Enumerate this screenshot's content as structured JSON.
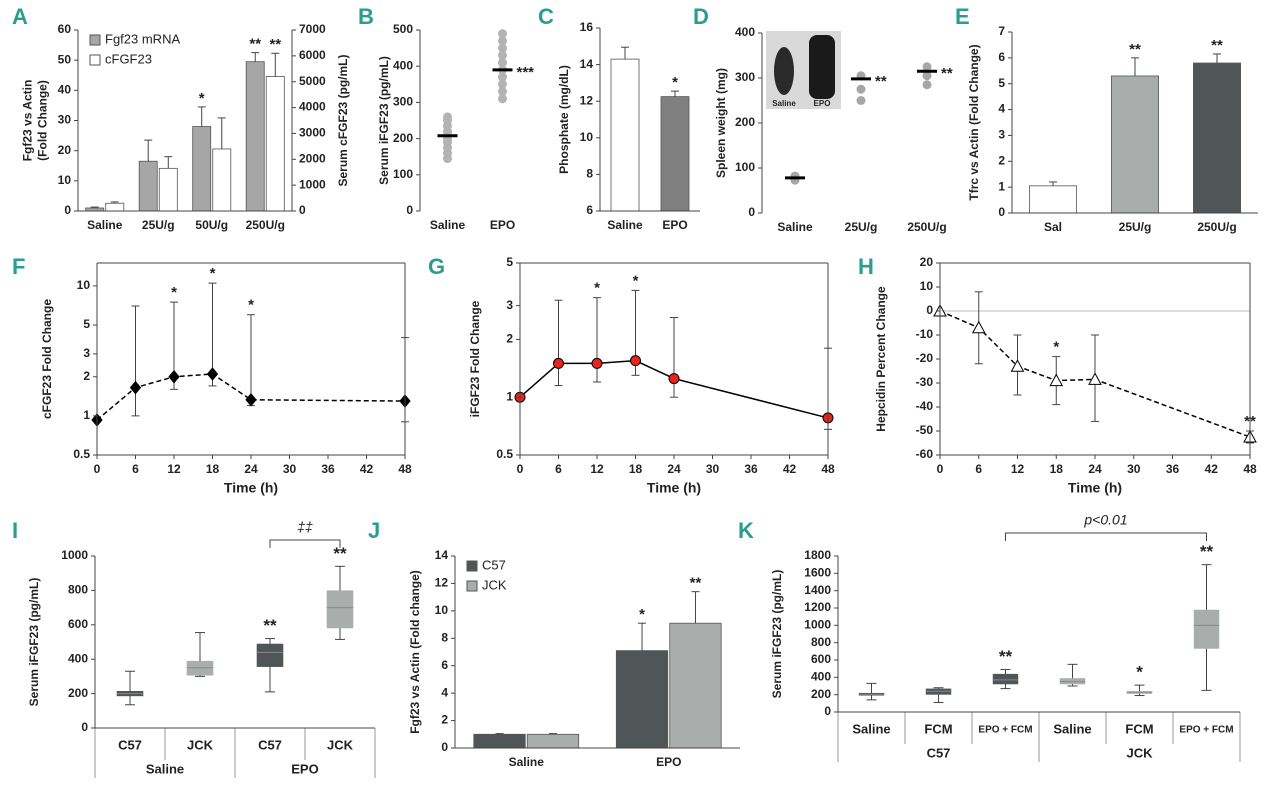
{
  "chart_data": [
    {
      "type": "bar",
      "panel": "A",
      "ylabel": [
        "Fgf23 vs Actin",
        "(Fold Change)"
      ],
      "y2label": "Serum cFGF23 (pg/mL)",
      "categories": [
        "Saline",
        "25U/g",
        "50U/g",
        "250U/g"
      ],
      "series": [
        {
          "name": "Fgf23 mRNA",
          "color": "#a6a6a6",
          "values": [
            1,
            16.5,
            28,
            49.5
          ],
          "errors": [
            0.3,
            7,
            6.5,
            3
          ],
          "labels": [
            null,
            null,
            "*",
            "**"
          ]
        },
        {
          "name": "cFGF23",
          "color": "#ffffff",
          "axis": "y2",
          "values": [
            300,
            1650,
            2400,
            5200
          ],
          "errors": [
            50,
            450,
            1200,
            900
          ],
          "labels": [
            null,
            null,
            null,
            "**"
          ]
        }
      ],
      "ylim": [
        0,
        60
      ],
      "yticks": [
        0,
        10,
        20,
        30,
        40,
        50,
        60
      ],
      "y2lim": [
        0,
        7000
      ],
      "y2ticks": [
        0,
        1000,
        2000,
        3000,
        4000,
        5000,
        6000,
        7000
      ],
      "legend": "upper left"
    },
    {
      "type": "strip",
      "panel": "B",
      "ylabel": "Serum iFGF23 (pg/mL)",
      "categories": [
        "Saline",
        "EPO"
      ],
      "points": [
        [
          145,
          160,
          175,
          190,
          200,
          210,
          220,
          235,
          250,
          260
        ],
        [
          310,
          330,
          350,
          370,
          390,
          410,
          430,
          450,
          470,
          490
        ]
      ],
      "means": [
        208,
        390
      ],
      "labels": [
        null,
        "***"
      ],
      "color": "#b3b3b3",
      "ylim": [
        0,
        500
      ],
      "yticks": [
        0,
        100,
        200,
        300,
        400,
        500
      ]
    },
    {
      "type": "bar",
      "panel": "C",
      "ylabel": "Phosphate (mg/dL)",
      "categories": [
        "Saline",
        "EPO"
      ],
      "values": [
        14.3,
        12.25
      ],
      "errors": [
        0.65,
        0.3
      ],
      "labels": [
        null,
        "*"
      ],
      "colors": [
        "#ffffff",
        "#808080"
      ],
      "ylim": [
        6,
        16
      ],
      "yticks": [
        6,
        8,
        10,
        12,
        14,
        16
      ]
    },
    {
      "type": "strip",
      "panel": "D",
      "ylabel": "Spleen weight (mg)",
      "categories": [
        "Saline",
        "25U/g",
        "250U/g"
      ],
      "points": [
        [
          73,
          78,
          82
        ],
        [
          250,
          275,
          305
        ],
        [
          285,
          305,
          325
        ]
      ],
      "means": [
        78,
        298,
        315
      ],
      "labels": [
        null,
        "**",
        "**"
      ],
      "color": "#a6a6a6",
      "ylim": [
        0,
        400
      ],
      "yticks": [
        0,
        100,
        200,
        300,
        400
      ],
      "inset_labels": [
        "Saline",
        "EPO"
      ]
    },
    {
      "type": "bar",
      "panel": "E",
      "ylabel": "Tfrc vs Actin (Fold Change)",
      "categories": [
        "Sal",
        "25U/g",
        "250U/g"
      ],
      "values": [
        1.05,
        5.3,
        5.8
      ],
      "errors": [
        0.15,
        0.7,
        0.35
      ],
      "labels": [
        null,
        "**",
        "**"
      ],
      "colors": [
        "#ffffff",
        "#a9aeac",
        "#505558"
      ],
      "ylim": [
        0,
        7
      ],
      "yticks": [
        0,
        1,
        2,
        3,
        4,
        5,
        6,
        7
      ]
    },
    {
      "type": "line",
      "panel": "F",
      "ylabel": "cFGF23 Fold Change",
      "xlabel": "Time (h)",
      "log": true,
      "x": [
        0,
        6,
        12,
        18,
        24,
        48
      ],
      "values": [
        0.93,
        1.65,
        2.0,
        2.1,
        1.33,
        1.3
      ],
      "upper": [
        null,
        7,
        7.5,
        10.5,
        6,
        4
      ],
      "lower": [
        null,
        1.0,
        1.6,
        1.7,
        1.2,
        0.9
      ],
      "labels": [
        null,
        null,
        "*",
        "*",
        "*",
        null
      ],
      "color": "#000000",
      "marker": "diamond",
      "marker_fill": "#000000",
      "dashed": true,
      "xlim": [
        0,
        48
      ],
      "xticks": [
        0,
        6,
        12,
        18,
        24,
        30,
        36,
        42,
        48
      ],
      "ylim": [
        0.5,
        15
      ],
      "yticks": [
        0.5,
        1,
        2,
        3,
        5,
        10
      ]
    },
    {
      "type": "line",
      "panel": "G",
      "ylabel": "iFGF23 Fold Change",
      "xlabel": "Time (h)",
      "log": true,
      "x": [
        0,
        6,
        12,
        18,
        24,
        48
      ],
      "values": [
        1.0,
        1.5,
        1.5,
        1.55,
        1.25,
        0.78
      ],
      "upper": [
        null,
        3.2,
        3.3,
        3.6,
        2.6,
        1.8
      ],
      "lower": [
        null,
        1.15,
        1.2,
        1.3,
        1.0,
        0.68
      ],
      "labels": [
        null,
        null,
        "*",
        "*",
        null,
        null
      ],
      "color": "#000000",
      "marker": "circle",
      "marker_fill": "#e8241c",
      "dashed": false,
      "xlim": [
        0,
        48
      ],
      "xticks": [
        0,
        6,
        12,
        18,
        24,
        30,
        36,
        42,
        48
      ],
      "ylim": [
        0.5,
        5
      ],
      "yticks": [
        0.5,
        1,
        2,
        3,
        5
      ]
    },
    {
      "type": "line",
      "panel": "H",
      "ylabel": "Hepcidin Percent Change",
      "xlabel": "Time (h)",
      "log": false,
      "x": [
        0,
        6,
        12,
        18,
        24,
        48
      ],
      "values": [
        0,
        -7,
        -23,
        -29,
        -28.5,
        -52.5
      ],
      "upper": [
        null,
        8,
        -10,
        -19,
        -10,
        -50
      ],
      "lower": [
        null,
        -22,
        -35,
        -39,
        -46,
        -55
      ],
      "labels": [
        null,
        null,
        null,
        "*",
        null,
        "**"
      ],
      "color": "#000000",
      "marker": "triangle",
      "marker_fill": "#ffffff",
      "dashed": true,
      "reference_line": 0,
      "xlim": [
        0,
        48
      ],
      "xticks": [
        0,
        6,
        12,
        18,
        24,
        30,
        36,
        42,
        48
      ],
      "ylim": [
        -60,
        20
      ],
      "yticks": [
        -60,
        -50,
        -40,
        -30,
        -20,
        -10,
        0,
        10,
        20
      ]
    },
    {
      "type": "box",
      "panel": "I",
      "ylabel": "Serum iFGF23 (pg/mL)",
      "categories": [
        "C57",
        "JCK",
        "C57",
        "JCK"
      ],
      "groups": [
        "Saline",
        "EPO"
      ],
      "boxes": [
        [
          135,
          185,
          200,
          215,
          330
        ],
        [
          300,
          305,
          350,
          390,
          555
        ],
        [
          210,
          355,
          440,
          490,
          520
        ],
        [
          515,
          580,
          700,
          800,
          940
        ]
      ],
      "labels": [
        null,
        null,
        "**",
        "**"
      ],
      "colors": [
        "#505558",
        "#a9aeac",
        "#505558",
        "#a9aeac"
      ],
      "bracket_label": "‡‡",
      "ylim": [
        0,
        1000
      ],
      "yticks": [
        0,
        200,
        400,
        600,
        800,
        1000
      ]
    },
    {
      "type": "bar",
      "panel": "J",
      "ylabel": "Fgf23 vs Actin (Fold change)",
      "categories": [
        "Saline",
        "EPO"
      ],
      "series": [
        {
          "name": "C57",
          "color": "#505558",
          "values": [
            1.0,
            7.1
          ],
          "errors": [
            0.05,
            2.0
          ],
          "labels": [
            null,
            "*"
          ]
        },
        {
          "name": "JCK",
          "color": "#a9aeac",
          "values": [
            1.0,
            9.1
          ],
          "errors": [
            0.05,
            2.3
          ],
          "labels": [
            null,
            "**"
          ]
        }
      ],
      "ylim": [
        0,
        14
      ],
      "yticks": [
        0,
        2,
        4,
        6,
        8,
        10,
        12,
        14
      ],
      "legend": "upper left"
    },
    {
      "type": "box",
      "panel": "K",
      "ylabel": "Serum  iFGF23 (pg/mL)",
      "categories": [
        "Saline",
        "FCM",
        "EPO + FCM",
        "Saline",
        "FCM",
        "EPO + FCM"
      ],
      "groups": [
        "C57",
        "JCK"
      ],
      "boxes": [
        [
          140,
          190,
          205,
          220,
          330
        ],
        [
          110,
          200,
          240,
          270,
          280
        ],
        [
          270,
          320,
          370,
          440,
          490
        ],
        [
          300,
          320,
          350,
          390,
          550
        ],
        [
          190,
          210,
          230,
          240,
          310
        ],
        [
          250,
          730,
          1000,
          1180,
          1700
        ]
      ],
      "labels": [
        null,
        null,
        "**",
        null,
        "*",
        "**"
      ],
      "colors": [
        "#505558",
        "#505558",
        "#505558",
        "#a9aeac",
        "#a9aeac",
        "#a9aeac"
      ],
      "bracket_label": "p<0.01",
      "ylim": [
        0,
        1800
      ],
      "yticks": [
        0,
        200,
        400,
        600,
        800,
        1000,
        1200,
        1400,
        1600,
        1800
      ]
    }
  ]
}
